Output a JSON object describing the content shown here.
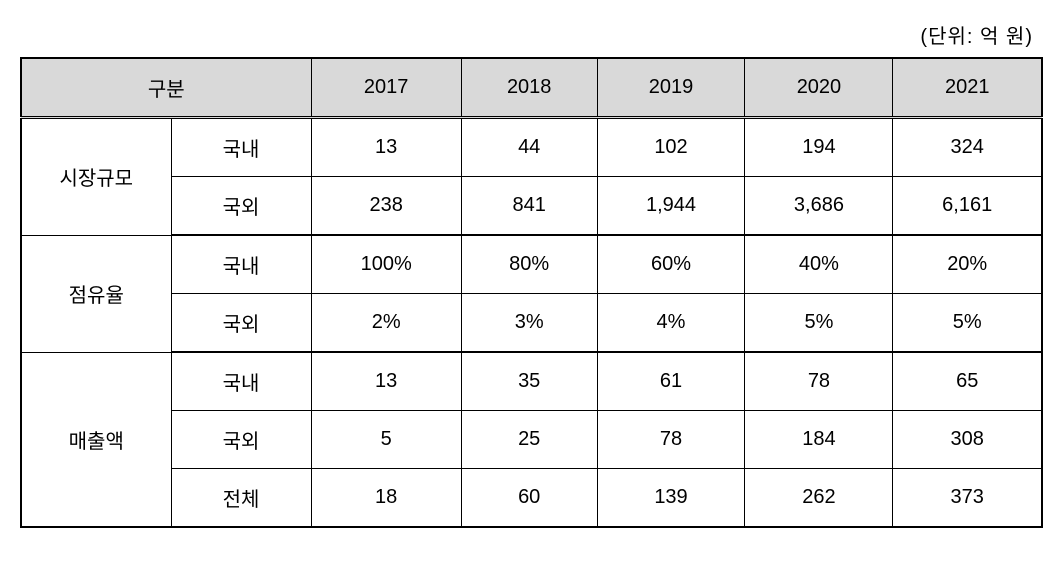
{
  "unit_label": "(단위: 억 원)",
  "table": {
    "type": "table",
    "background_color": "#ffffff",
    "header_bg_color": "#d9d9d9",
    "border_color": "#000000",
    "font_size": 20,
    "columns": {
      "category_label": "구분",
      "years": [
        "2017",
        "2018",
        "2019",
        "2020",
        "2021"
      ]
    },
    "sections": [
      {
        "category": "시장규모",
        "rows": [
          {
            "subcategory": "국내",
            "values": [
              "13",
              "44",
              "102",
              "194",
              "324"
            ]
          },
          {
            "subcategory": "국외",
            "values": [
              "238",
              "841",
              "1,944",
              "3,686",
              "6,161"
            ]
          }
        ]
      },
      {
        "category": "점유율",
        "rows": [
          {
            "subcategory": "국내",
            "values": [
              "100%",
              "80%",
              "60%",
              "40%",
              "20%"
            ]
          },
          {
            "subcategory": "국외",
            "values": [
              "2%",
              "3%",
              "4%",
              "5%",
              "5%"
            ]
          }
        ]
      },
      {
        "category": "매출액",
        "rows": [
          {
            "subcategory": "국내",
            "values": [
              "13",
              "35",
              "61",
              "78",
              "65"
            ]
          },
          {
            "subcategory": "국외",
            "values": [
              "5",
              "25",
              "78",
              "184",
              "308"
            ]
          },
          {
            "subcategory": "전체",
            "values": [
              "18",
              "60",
              "139",
              "262",
              "373"
            ]
          }
        ]
      }
    ]
  }
}
